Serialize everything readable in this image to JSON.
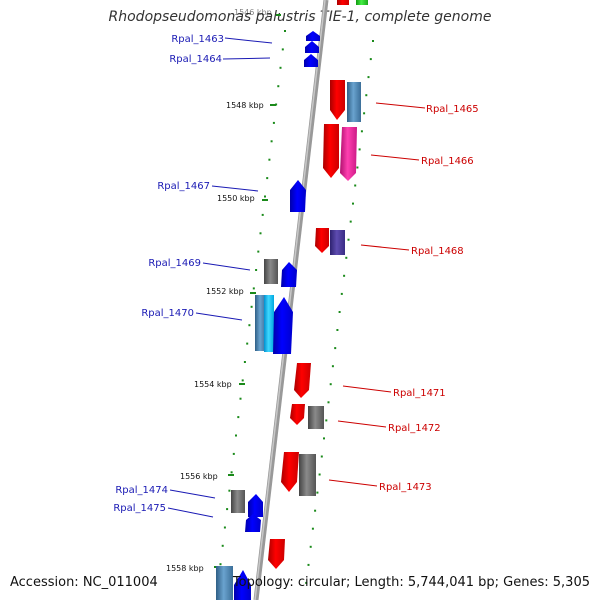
{
  "title": "Rhodopseudomonas palustris TIE-1, complete genome",
  "accession": "Accession: NC_011004",
  "summary": "Topology: circular; Length: 5,744,041 bp; Genes: 5,305",
  "colors": {
    "backbone": "#888888",
    "tick": "#1a8a1a",
    "blue": "#0000ee",
    "red": "#ee0000",
    "gray": "#666666",
    "steelblue": "#4682b4",
    "pink": "#ee2aa0",
    "purple": "#4b3a8f",
    "cyan": "#00bfff",
    "green": "#22cc22",
    "label_blue": "#1a1ab4",
    "label_red": "#cc0000"
  },
  "scale_labels": [
    "1546 kbp",
    "1548 kbp",
    "1550 kbp",
    "1552 kbp",
    "1554 kbp",
    "1556 kbp",
    "1558 kbp"
  ],
  "gene_labels": {
    "left": [
      "Rpal_1463",
      "Rpal_1464",
      "Rpal_1467",
      "Rpal_1469",
      "Rpal_1470",
      "Rpal_1474",
      "Rpal_1475"
    ],
    "right": [
      "Rpal_1465",
      "Rpal_1466",
      "Rpal_1468",
      "Rpal_1471",
      "Rpal_1472",
      "Rpal_1473"
    ]
  }
}
